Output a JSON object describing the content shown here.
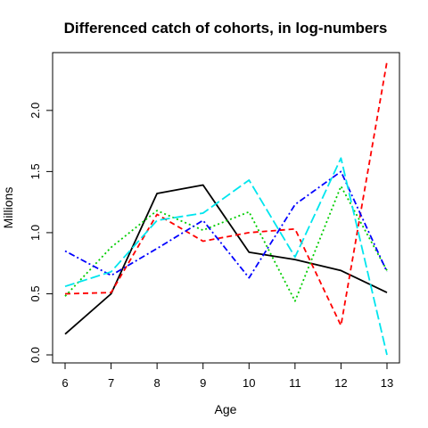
{
  "chart_data": {
    "type": "line",
    "title": "Differenced catch of cohorts, in log-numbers",
    "xlabel": "Age",
    "ylabel": "Millions",
    "x": [
      6,
      7,
      8,
      9,
      10,
      11,
      12,
      13
    ],
    "xlim": [
      6,
      13
    ],
    "ylim": [
      0,
      2.4
    ],
    "xticks": [
      "6",
      "7",
      "8",
      "9",
      "10",
      "11",
      "12",
      "13"
    ],
    "yticks": [
      "0.0",
      "0.5",
      "1.0",
      "1.5",
      "2.0"
    ],
    "ytick_values": [
      0,
      0.5,
      1.0,
      1.5,
      2.0
    ],
    "grid": false,
    "series": [
      {
        "color": "#000000",
        "dash": "solid",
        "values": [
          0.17,
          0.5,
          1.32,
          1.39,
          0.84,
          0.78,
          0.69,
          0.51
        ]
      },
      {
        "color": "#ff0000",
        "dash": "dashed",
        "values": [
          0.5,
          0.51,
          1.15,
          0.93,
          1.0,
          1.03,
          0.24,
          2.4
        ]
      },
      {
        "color": "#00cd00",
        "dash": "dotted",
        "values": [
          0.48,
          0.88,
          1.18,
          1.02,
          1.17,
          0.44,
          1.38,
          0.69
        ]
      },
      {
        "color": "#0000ff",
        "dash": "dotdash",
        "values": [
          0.85,
          0.65,
          0.87,
          1.1,
          0.63,
          1.23,
          1.5,
          0.68
        ]
      },
      {
        "color": "#00e5ee",
        "dash": "longdash",
        "values": [
          0.56,
          0.68,
          1.1,
          1.16,
          1.43,
          0.8,
          1.61,
          0.0
        ]
      }
    ]
  }
}
